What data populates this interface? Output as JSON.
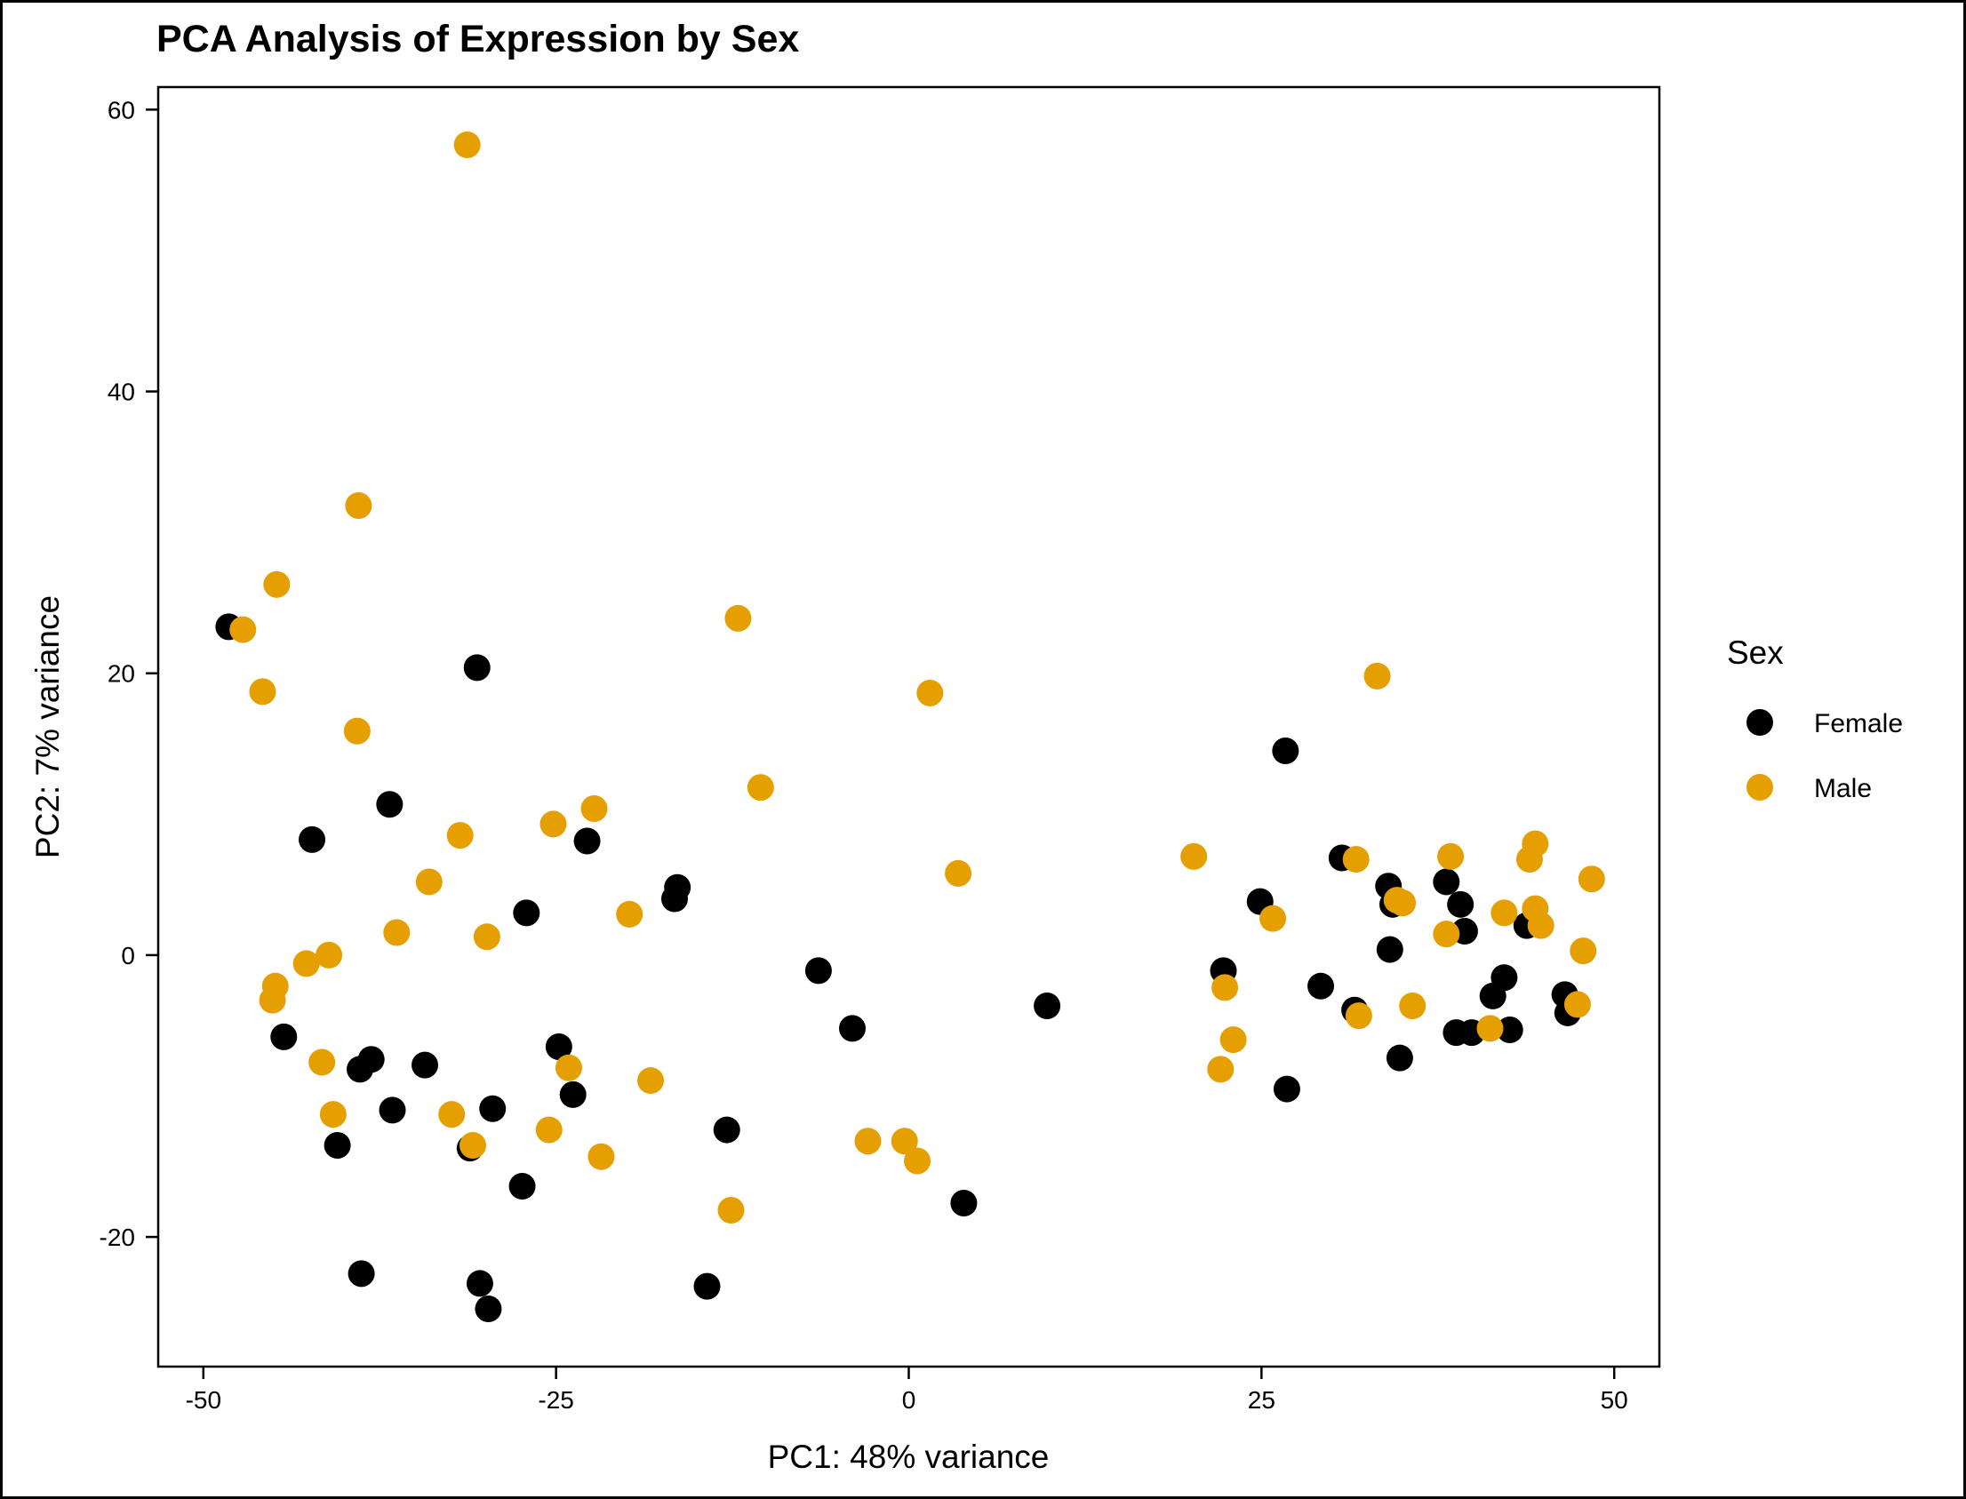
{
  "chart_data": {
    "type": "scatter",
    "title": "PCA Analysis of Expression by Sex",
    "xlabel": "PC1: 48% variance",
    "ylabel": "PC2: 7% variance",
    "xlim": [
      -53.2,
      53.2
    ],
    "ylim": [
      -29.2,
      61.6
    ],
    "x_ticks": [
      -50,
      -25,
      0,
      25,
      50
    ],
    "x_tick_labels": [
      "-50",
      "-25",
      "0",
      "25",
      "50"
    ],
    "y_ticks": [
      -20,
      0,
      20,
      40,
      60
    ],
    "y_tick_labels": [
      "-20",
      "0",
      "20",
      "40",
      "60"
    ],
    "grid": false,
    "legend": {
      "title": "Sex",
      "placement": "right"
    },
    "series": [
      {
        "name": "Female",
        "color": "#000000",
        "points": [
          [
            -48.2,
            23.3
          ],
          [
            -42.3,
            8.2
          ],
          [
            -44.3,
            -5.8
          ],
          [
            -38.1,
            -7.4
          ],
          [
            -38.9,
            -8.1
          ],
          [
            -36.8,
            10.7
          ],
          [
            -36.6,
            -11.0
          ],
          [
            -34.3,
            -7.8
          ],
          [
            -40.5,
            -13.5
          ],
          [
            -38.8,
            -22.6
          ],
          [
            -30.6,
            20.4
          ],
          [
            -31.1,
            -13.7
          ],
          [
            -29.5,
            -10.9
          ],
          [
            -27.1,
            3.0
          ],
          [
            -27.4,
            -16.4
          ],
          [
            -30.4,
            -23.3
          ],
          [
            -29.8,
            -25.1
          ],
          [
            -24.8,
            -6.5
          ],
          [
            -23.8,
            -9.9
          ],
          [
            -22.8,
            8.1
          ],
          [
            -16.4,
            4.8
          ],
          [
            -16.6,
            4.0
          ],
          [
            -12.9,
            -12.4
          ],
          [
            -14.3,
            -23.5
          ],
          [
            -6.4,
            -1.1
          ],
          [
            -4.0,
            -5.2
          ],
          [
            3.9,
            -17.6
          ],
          [
            9.8,
            -3.6
          ],
          [
            22.3,
            -1.1
          ],
          [
            24.9,
            3.8
          ],
          [
            26.7,
            14.5
          ],
          [
            26.8,
            -9.5
          ],
          [
            29.2,
            -2.2
          ],
          [
            30.7,
            6.9
          ],
          [
            31.6,
            -3.9
          ],
          [
            34.0,
            4.9
          ],
          [
            34.3,
            3.6
          ],
          [
            34.1,
            0.4
          ],
          [
            34.8,
            -7.3
          ],
          [
            38.1,
            5.2
          ],
          [
            39.1,
            3.6
          ],
          [
            39.4,
            1.7
          ],
          [
            38.8,
            -5.5
          ],
          [
            39.9,
            -5.5
          ],
          [
            41.4,
            -2.9
          ],
          [
            42.2,
            -1.6
          ],
          [
            42.6,
            -5.3
          ],
          [
            43.8,
            2.1
          ],
          [
            46.5,
            -2.8
          ],
          [
            46.7,
            -4.1
          ]
        ]
      },
      {
        "name": "Male",
        "color": "#E69F00",
        "points": [
          [
            -31.3,
            57.5
          ],
          [
            -39.0,
            31.9
          ],
          [
            -44.8,
            26.3
          ],
          [
            -47.2,
            23.1
          ],
          [
            -45.8,
            18.7
          ],
          [
            -39.1,
            15.9
          ],
          [
            -31.8,
            8.5
          ],
          [
            -34.0,
            5.2
          ],
          [
            -36.3,
            1.6
          ],
          [
            -29.9,
            1.3
          ],
          [
            -41.1,
            0.0
          ],
          [
            -42.7,
            -0.6
          ],
          [
            -44.9,
            -2.2
          ],
          [
            -45.1,
            -3.2
          ],
          [
            -41.6,
            -7.6
          ],
          [
            -40.8,
            -11.3
          ],
          [
            -32.4,
            -11.3
          ],
          [
            -30.9,
            -13.5
          ],
          [
            -25.2,
            9.3
          ],
          [
            -22.3,
            10.4
          ],
          [
            -19.8,
            2.9
          ],
          [
            -24.1,
            -8.0
          ],
          [
            -25.5,
            -12.4
          ],
          [
            -21.8,
            -14.3
          ],
          [
            -18.3,
            -8.9
          ],
          [
            -12.1,
            23.9
          ],
          [
            -10.5,
            11.9
          ],
          [
            -12.6,
            -18.1
          ],
          [
            1.5,
            18.6
          ],
          [
            3.5,
            5.8
          ],
          [
            -2.9,
            -13.2
          ],
          [
            -0.3,
            -13.2
          ],
          [
            0.6,
            -14.6
          ],
          [
            20.2,
            7.0
          ],
          [
            22.4,
            -2.3
          ],
          [
            22.1,
            -8.1
          ],
          [
            23.0,
            -6.0
          ],
          [
            25.8,
            2.6
          ],
          [
            31.7,
            6.8
          ],
          [
            31.9,
            -4.3
          ],
          [
            33.2,
            19.8
          ],
          [
            34.6,
            3.9
          ],
          [
            35.0,
            3.7
          ],
          [
            35.7,
            -3.6
          ],
          [
            38.4,
            7.0
          ],
          [
            38.1,
            1.5
          ],
          [
            42.2,
            3.0
          ],
          [
            41.2,
            -5.2
          ],
          [
            44.4,
            7.9
          ],
          [
            44.0,
            6.8
          ],
          [
            44.4,
            3.3
          ],
          [
            44.8,
            2.1
          ],
          [
            48.4,
            5.4
          ],
          [
            47.8,
            0.3
          ],
          [
            47.4,
            -3.5
          ]
        ]
      }
    ]
  }
}
